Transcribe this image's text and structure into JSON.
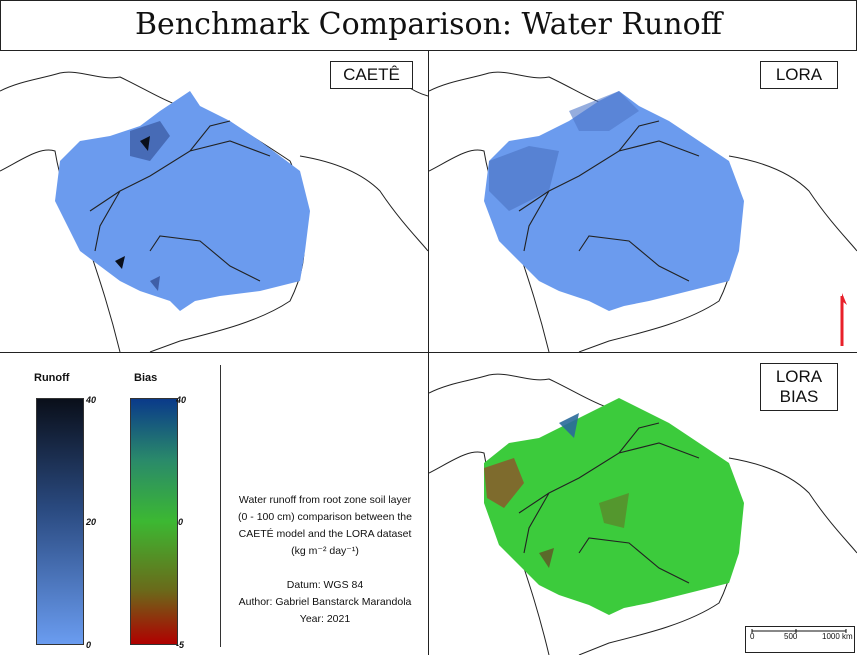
{
  "title": "Benchmark Comparison: Water Runoff",
  "panels": {
    "caete": {
      "label": "CAETÊ"
    },
    "lora": {
      "label": "LORA"
    },
    "bias": {
      "label_line1": "LORA",
      "label_line2": "BIAS"
    }
  },
  "legend": {
    "runoff": {
      "title": "Runoff",
      "max": "40",
      "mid": "20",
      "min": "0",
      "colors": [
        "#0a0f1a",
        "#2a4a80",
        "#6a9cf0"
      ]
    },
    "bias": {
      "title": "Bias",
      "max": "40",
      "mid": "0",
      "min": "-5",
      "colors": [
        "#0a3a8a",
        "#3cb832",
        "#b00000"
      ]
    }
  },
  "description": {
    "line1": "Water runoff from root zone soil layer",
    "line2": "(0 - 100 cm) comparison between the",
    "line3": "CAETÉ model and the LORA dataset",
    "line4": "(kg m⁻² day⁻¹)",
    "datum": "Datum: WGS 84",
    "author": "Author: Gabriel Banstarck Marandola",
    "year": "Year: 2021"
  },
  "scalebar": {
    "t0": "0",
    "t1": "500",
    "t2": "1000 km"
  },
  "colors": {
    "runoff_fill": "#6b9bee",
    "runoff_dark": "#3f5fa8",
    "bias_green": "#3ccb3c",
    "bias_brown": "#8a5a2a",
    "north_arrow": "#e8202a"
  },
  "icons": {
    "north": "north-arrow-icon"
  }
}
